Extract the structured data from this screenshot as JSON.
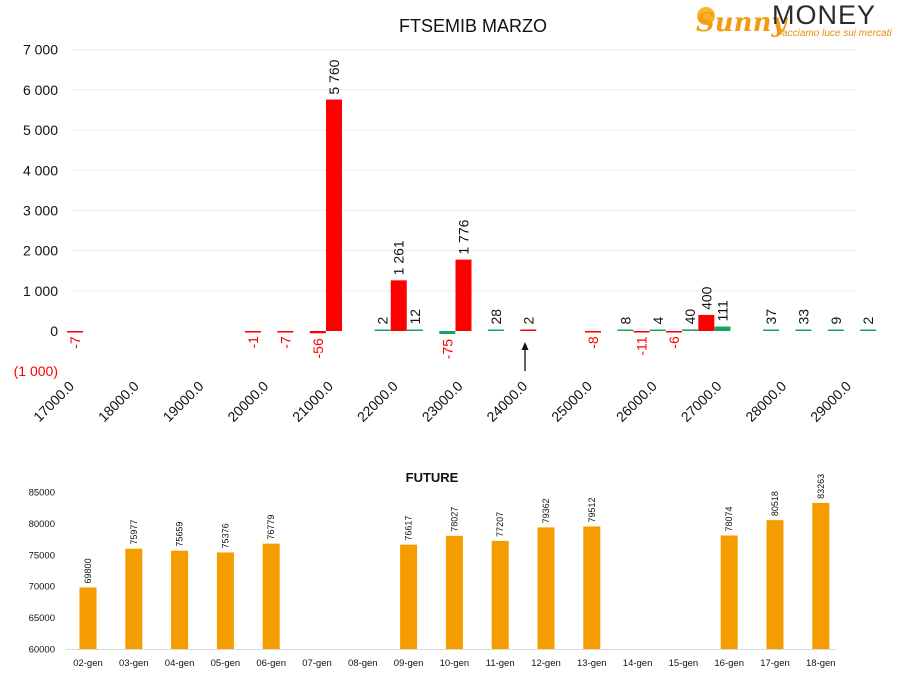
{
  "logo": {
    "word1": "Sunny",
    "word2": "MONEY",
    "tagline": "Facciamo luce sui mercati"
  },
  "chart_data": [
    {
      "type": "bar",
      "title": "FTSEMIB MARZO",
      "xlabel": "",
      "ylabel": "",
      "ylim": [
        -1000,
        7000
      ],
      "y_ticks": [
        -1000,
        0,
        1000,
        2000,
        3000,
        4000,
        5000,
        6000,
        7000
      ],
      "y_tick_labels": [
        "(1 000)",
        "0",
        "1 000",
        "2 000",
        "3 000",
        "4 000",
        "5 000",
        "6 000",
        "7 000"
      ],
      "xlim": [
        17000,
        29000
      ],
      "x_ticks": [
        17000,
        18000,
        19000,
        20000,
        21000,
        22000,
        23000,
        24000,
        25000,
        26000,
        27000,
        28000,
        29000
      ],
      "x_tick_labels": [
        "17000.0",
        "18000.0",
        "19000.0",
        "20000.0",
        "21000.0",
        "22000.0",
        "23000.0",
        "24000.0",
        "25000.0",
        "26000.0",
        "27000.0",
        "28000.0",
        "29000.0"
      ],
      "grid": true,
      "colors": {
        "put": "#ff0000",
        "call": "#1aa260",
        "negative_label": "#ff0000",
        "label": "#111111"
      },
      "series": [
        {
          "kind": "put",
          "x": [
            17000,
            19750,
            20250,
            20750,
            21000,
            22000,
            23000,
            24000,
            25000,
            25750,
            26250,
            26750
          ],
          "values": [
            -7,
            -1,
            -7,
            -56,
            5760,
            1261,
            1776,
            2,
            -8,
            -11,
            -6,
            400
          ],
          "labels": [
            "-7",
            "-1",
            "-7",
            "-56",
            "5 760",
            "1 261",
            "1 776",
            "2",
            "-8",
            "-11",
            "-6",
            "400"
          ]
        },
        {
          "kind": "call",
          "x": [
            21750,
            22250,
            22750,
            23500,
            25500,
            26000,
            26500,
            27000,
            27750,
            28250,
            28750
          ],
          "values": [
            2,
            12,
            -75,
            28,
            8,
            4,
            40,
            111,
            37,
            33,
            9
          ],
          "labels": [
            "2",
            "12",
            "-75",
            "28",
            "8",
            "4",
            "40",
            "111",
            "37",
            "33",
            "9"
          ]
        },
        {
          "kind": "call",
          "x": [
            29250
          ],
          "values": [
            2
          ],
          "labels": [
            "2"
          ]
        }
      ],
      "annotations": [
        {
          "type": "arrow",
          "at_x": 23950
        }
      ]
    },
    {
      "type": "bar",
      "title": "FUTURE",
      "xlabel": "",
      "ylabel": "",
      "ylim": [
        60000,
        85000
      ],
      "y_ticks": [
        60000,
        65000,
        70000,
        75000,
        80000,
        85000
      ],
      "grid": false,
      "color": "#f59c00",
      "categories": [
        "02-gen",
        "03-gen",
        "04-gen",
        "05-gen",
        "06-gen",
        "07-gen",
        "08-gen",
        "09-gen",
        "10-gen",
        "11-gen",
        "12-gen",
        "13-gen",
        "14-gen",
        "15-gen",
        "16-gen",
        "17-gen",
        "18-gen"
      ],
      "values": [
        69800,
        75977,
        75659,
        75376,
        76779,
        null,
        null,
        76617,
        78027,
        77207,
        79362,
        79512,
        null,
        null,
        78074,
        80518,
        83263
      ]
    }
  ]
}
